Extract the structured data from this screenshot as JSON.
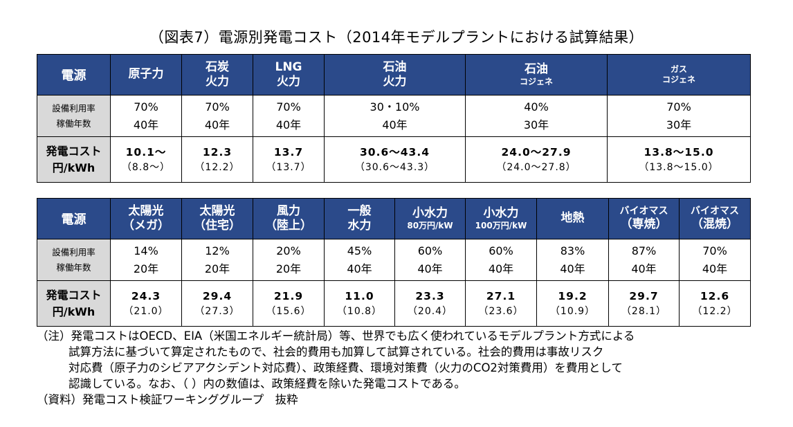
{
  "title": "（図表7）電源別発電コスト（2014年モデルプラントにおける試算結果）",
  "table1": {
    "label_header": "電源",
    "row_labels": {
      "util_line1": "設備利用率",
      "util_line2": "稼働年数",
      "cost_line1": "発電コスト",
      "cost_line2": "円/kWh"
    },
    "columns": [
      {
        "h1": "原子力",
        "h2": "",
        "util": "70%",
        "years": "40年",
        "cost": "10.1～",
        "cost_sub": "（8.8～）"
      },
      {
        "h1": "石炭",
        "h2": "火力",
        "util": "70%",
        "years": "40年",
        "cost": "12.3",
        "cost_sub": "（12.2）"
      },
      {
        "h1": "LNG",
        "h2": "火力",
        "util": "70%",
        "years": "40年",
        "cost": "13.7",
        "cost_sub": "（13.7）"
      },
      {
        "h1": "石油",
        "h2": "火力",
        "util": "30・10%",
        "years": "40年",
        "cost": "30.6～43.4",
        "cost_sub": "（30.6～43.3）"
      },
      {
        "h1": "石油",
        "h2": "コジェネ",
        "util": "40%",
        "years": "30年",
        "cost": "24.0～27.9",
        "cost_sub": "（24.0～27.8）"
      },
      {
        "h1": "ガス",
        "h2": "コジェネ",
        "util": "70%",
        "years": "30年",
        "cost": "13.8～15.0",
        "cost_sub": "（13.8～15.0）"
      }
    ]
  },
  "table2": {
    "label_header": "電源",
    "row_labels": {
      "util_line1": "設備利用率",
      "util_line2": "稼働年数",
      "cost_line1": "発電コスト",
      "cost_line2": "円/kWh"
    },
    "columns": [
      {
        "h1": "太陽光",
        "h2": "（メガ）",
        "util": "14%",
        "years": "20年",
        "cost": "24.3",
        "cost_sub": "（21.0）"
      },
      {
        "h1": "太陽光",
        "h2": "（住宅）",
        "util": "12%",
        "years": "20年",
        "cost": "29.4",
        "cost_sub": "（27.3）"
      },
      {
        "h1": "風力",
        "h2": "（陸上）",
        "util": "20%",
        "years": "20年",
        "cost": "21.9",
        "cost_sub": "（15.6）"
      },
      {
        "h1": "一般",
        "h2": "水力",
        "util": "45%",
        "years": "40年",
        "cost": "11.0",
        "cost_sub": "（10.8）"
      },
      {
        "h1": "小水力",
        "h2": "80万円/kW",
        "util": "60%",
        "years": "40年",
        "cost": "23.3",
        "cost_sub": "（20.4）"
      },
      {
        "h1": "小水力",
        "h2": "100万円/kW",
        "util": "60%",
        "years": "40年",
        "cost": "27.1",
        "cost_sub": "（23.6）"
      },
      {
        "h1": "地熱",
        "h2": "",
        "util": "83%",
        "years": "40年",
        "cost": "19.2",
        "cost_sub": "（10.9）"
      },
      {
        "h1": "バイオマス",
        "h2": "（専焼）",
        "util": "87%",
        "years": "40年",
        "cost": "29.7",
        "cost_sub": "（28.1）"
      },
      {
        "h1": "バイオマス",
        "h2": "（混焼）",
        "util": "70%",
        "years": "40年",
        "cost": "12.6",
        "cost_sub": "（12.2）"
      }
    ]
  },
  "notes": {
    "note_line1": "（注）発電コストはOECD、EIA（米国エネルギー統計局）等、世界でも広く使われているモデルプラント方式による",
    "note_line2": "試算方法に基づいて算定されたもので、社会的費用も加算して試算されている。社会的費用は事故リスク",
    "note_line3": "対応費（原子力のシビアアクシデント対応費）、政策経費、環境対策費（火力のCO2対策費用）を費用として",
    "note_line4": "認識している。なお、（ ）内の数値は、政策経費を除いた発電コストである。",
    "source": "（資料）発電コスト検証ワーキンググループ　抜粋"
  }
}
